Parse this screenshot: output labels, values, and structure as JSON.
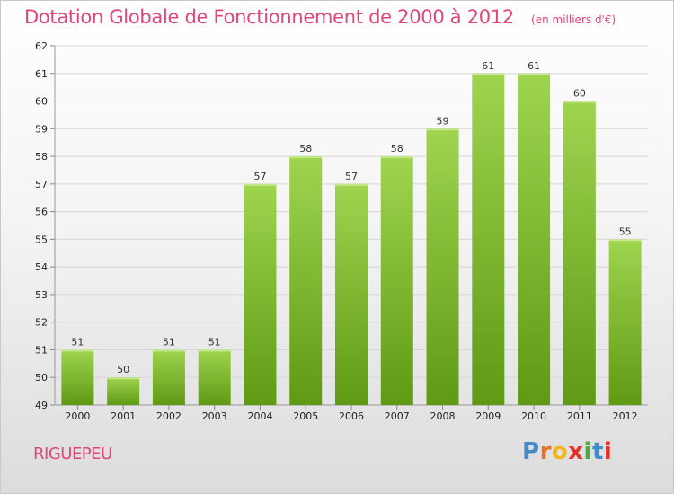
{
  "header": {
    "title": "Dotation Globale de Fonctionnement de 2000 à 2012",
    "subtitle": "(en milliers d'€)"
  },
  "footer": {
    "commune": "RIGUEPEU",
    "logo_letters": [
      "P",
      "r",
      "o",
      "x",
      "i",
      "t",
      "i"
    ]
  },
  "colors": {
    "accent": "#e0457b",
    "bar_top": "#9fd44f",
    "bar_bottom": "#5f9a14",
    "grid": "#d6d6d6",
    "logo": [
      "#4a89c8",
      "#e8702a",
      "#f2b51f",
      "#e8302a",
      "#4fa840",
      "#3f8fd0",
      "#e8302a"
    ]
  },
  "chart_data": {
    "type": "bar",
    "categories": [
      "2000",
      "2001",
      "2002",
      "2003",
      "2004",
      "2005",
      "2006",
      "2007",
      "2008",
      "2009",
      "2010",
      "2011",
      "2012"
    ],
    "values": [
      51,
      50,
      51,
      51,
      57,
      58,
      57,
      58,
      59,
      61,
      61,
      60,
      55
    ],
    "title": "Dotation Globale de Fonctionnement de 2000 à 2012",
    "xlabel": "",
    "ylabel": "",
    "ylim": [
      49,
      62
    ],
    "yticks": [
      49,
      50,
      51,
      52,
      53,
      54,
      55,
      56,
      57,
      58,
      59,
      60,
      61,
      62
    ],
    "grid": true,
    "data_labels": true
  }
}
